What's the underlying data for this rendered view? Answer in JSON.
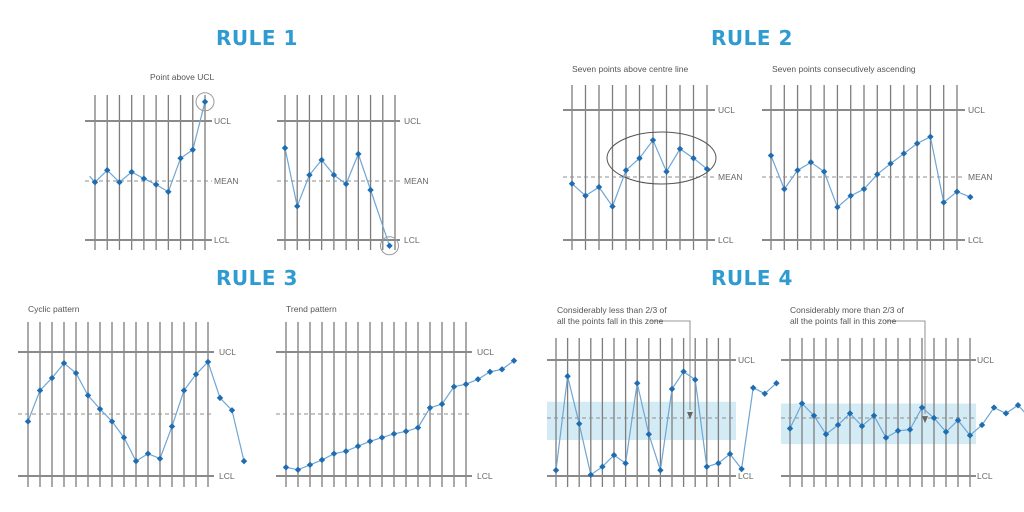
{
  "rules": [
    {
      "title": "RULE 1",
      "charts": [
        {
          "caption": "",
          "annotation": "Point above UCL",
          "labels": {
            "ucl": "UCL",
            "mean": "MEAN",
            "lcl": "LCL"
          },
          "x_count": 10,
          "values": [
            0.08,
            -0.02,
            0.18,
            -0.02,
            0.15,
            0.04,
            -0.06,
            -0.18,
            0.38,
            0.52,
            1.32
          ],
          "x_positions": [
            -0.45,
            0,
            1,
            2,
            3,
            4,
            5,
            6,
            7,
            8,
            9
          ],
          "highlight_index": 10
        },
        {
          "caption": "",
          "annotation": "",
          "labels": {
            "ucl": "UCL",
            "mean": "MEAN",
            "lcl": "LCL"
          },
          "x_count": 10,
          "values": [
            0.55,
            -0.42,
            0.1,
            0.35,
            0.1,
            -0.05,
            0.45,
            -0.15,
            -1.08
          ],
          "x_positions": [
            0,
            1,
            2,
            3,
            4,
            5,
            6,
            7,
            8.55
          ],
          "highlight_index": 8
        }
      ]
    },
    {
      "title": "RULE 2",
      "charts": [
        {
          "caption": "Seven points above centre line",
          "annotation": "",
          "labels": {
            "ucl": "UCL",
            "mean": "MEAN",
            "lcl": "LCL"
          },
          "x_count": 11,
          "values": [
            -0.1,
            -0.28,
            -0.15,
            -0.44,
            0.1,
            0.28,
            0.55,
            0.08,
            0.42,
            0.28,
            0.12
          ],
          "x_positions": [
            0,
            1,
            2,
            3,
            4,
            5,
            6,
            7,
            8,
            9,
            10
          ],
          "ellipse_range": [
            4,
            10
          ]
        },
        {
          "caption": "Seven points consecutively ascending",
          "annotation": "",
          "labels": {
            "ucl": "UCL",
            "mean": "MEAN",
            "lcl": "LCL"
          },
          "x_count": 15,
          "values": [
            0.32,
            -0.18,
            0.1,
            0.22,
            0.08,
            -0.45,
            -0.28,
            -0.18,
            0.04,
            0.2,
            0.35,
            0.5,
            0.6,
            -0.38,
            -0.22,
            -0.3
          ],
          "x_positions": [
            0,
            1,
            2,
            3,
            4,
            5,
            6,
            7,
            8,
            9,
            10,
            11,
            12,
            13,
            14,
            15
          ]
        }
      ]
    },
    {
      "title": "RULE 3",
      "charts": [
        {
          "caption": "Cyclic pattern",
          "annotation": "",
          "labels": {
            "ucl": "UCL",
            "mean": "",
            "lcl": "LCL"
          },
          "x_count": 16,
          "values": [
            -0.12,
            0.38,
            0.58,
            0.82,
            0.66,
            0.3,
            0.08,
            -0.12,
            -0.38,
            -0.76,
            -0.64,
            -0.72,
            -0.2,
            0.38,
            0.64,
            0.84,
            0.26,
            0.06,
            -0.76
          ],
          "x_positions": [
            0,
            1,
            2,
            3,
            4,
            5,
            6,
            7,
            8,
            9,
            10,
            11,
            12,
            13,
            14,
            15,
            16,
            17,
            18
          ]
        },
        {
          "caption": "Trend pattern",
          "annotation": "",
          "labels": {
            "ucl": "UCL",
            "mean": "",
            "lcl": "LCL"
          },
          "x_count": 16,
          "values": [
            -0.86,
            -0.9,
            -0.82,
            -0.74,
            -0.64,
            -0.6,
            -0.52,
            -0.44,
            -0.38,
            -0.32,
            -0.28,
            -0.22,
            0.1,
            0.16,
            0.44,
            0.48,
            0.56,
            0.68,
            0.72,
            0.86
          ],
          "x_positions": [
            0,
            1,
            2,
            3,
            4,
            5,
            6,
            7,
            8,
            9,
            10,
            11,
            12,
            13,
            14,
            15,
            16,
            17,
            18,
            19
          ]
        }
      ]
    },
    {
      "title": "RULE 4",
      "charts": [
        {
          "caption": "Considerably less than 2/3 of all the points fall in this zone",
          "caption_lines": [
            "Considerably less than 2/3 of",
            "all the points fall in this zone"
          ],
          "annotation": "",
          "labels": {
            "ucl": "UCL",
            "mean": "",
            "lcl": "LCL"
          },
          "x_count": 16,
          "zone": [
            -0.38,
            0.28
          ],
          "values": [
            -0.9,
            0.72,
            -0.1,
            -0.98,
            -0.84,
            -0.64,
            -0.78,
            0.6,
            -0.28,
            -0.9,
            0.5,
            0.8,
            0.66,
            -0.84,
            -0.78,
            -0.62,
            -0.88,
            0.52,
            0.42,
            0.6
          ],
          "x_positions": [
            0,
            1,
            2,
            3,
            4,
            5,
            6,
            7,
            8,
            9,
            10,
            11,
            12,
            13,
            14,
            15,
            16,
            17,
            18,
            19
          ]
        },
        {
          "caption": "Considerably more than 2/3 of all the points fall in this zone",
          "caption_lines": [
            "Considerably more than 2/3 of",
            "all the points fall in this zone"
          ],
          "annotation": "",
          "labels": {
            "ucl": "UCL",
            "mean": "",
            "lcl": "LCL"
          },
          "x_count": 16,
          "zone": [
            -0.45,
            0.25
          ],
          "values": [
            -0.18,
            0.25,
            0.04,
            -0.28,
            -0.12,
            0.08,
            -0.14,
            0.04,
            -0.34,
            -0.22,
            -0.2,
            0.18,
            0.0,
            -0.24,
            -0.04,
            -0.3,
            -0.12,
            0.18,
            0.08,
            0.22,
            0.0
          ],
          "x_positions": [
            0,
            1,
            2,
            3,
            4,
            5,
            6,
            7,
            8,
            9,
            10,
            11,
            12,
            13,
            14,
            15,
            16,
            17,
            18,
            19,
            20
          ]
        }
      ]
    }
  ]
}
